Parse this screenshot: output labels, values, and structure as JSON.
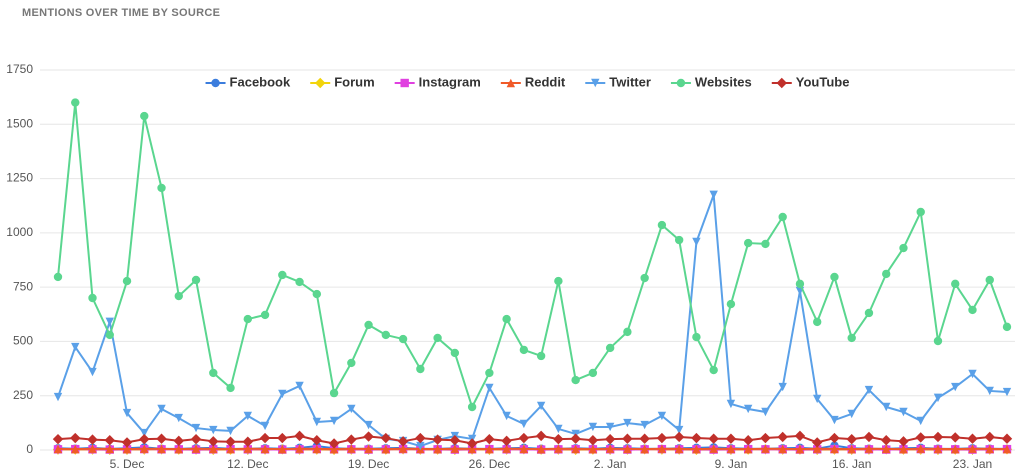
{
  "chart_data": {
    "type": "line",
    "title": "MENTIONS OVER TIME BY SOURCE",
    "categories": [
      null,
      null,
      null,
      null,
      "5. Dec",
      null,
      null,
      null,
      null,
      null,
      null,
      "12. Dec",
      null,
      null,
      null,
      null,
      null,
      null,
      "19. Dec",
      null,
      null,
      null,
      null,
      null,
      null,
      "26. Dec",
      null,
      null,
      null,
      null,
      null,
      null,
      "2. Jan",
      null,
      null,
      null,
      null,
      null,
      null,
      "9. Jan",
      null,
      null,
      null,
      null,
      null,
      null,
      "16. Jan",
      null,
      null,
      null,
      null,
      null,
      null,
      "23. Jan",
      null,
      null
    ],
    "ylim": [
      0,
      1750
    ],
    "yticks": [
      0,
      250,
      500,
      750,
      1000,
      1250,
      1500,
      1750
    ],
    "grid": true,
    "series": [
      {
        "name": "Facebook",
        "color": "#3b7ddd",
        "marker": "circle",
        "values": [
          8,
          6,
          10,
          5,
          8,
          12,
          6,
          5,
          8,
          10,
          6,
          5,
          8,
          6,
          10,
          18,
          8,
          5,
          6,
          8,
          10,
          6,
          5,
          8,
          6,
          5,
          8,
          10,
          6,
          5,
          8,
          6,
          10,
          8,
          6,
          5,
          8,
          10,
          12,
          8,
          6,
          5,
          8,
          10,
          6,
          20,
          8,
          6,
          5,
          8,
          10,
          6,
          5,
          8,
          6,
          5
        ]
      },
      {
        "name": "Forum",
        "color": "#f2d40c",
        "marker": "diamond",
        "values": [
          2,
          2,
          2,
          1,
          2,
          2,
          3,
          2,
          2,
          1,
          2,
          2,
          2,
          3,
          2,
          2,
          1,
          2,
          2,
          2,
          3,
          2,
          2,
          1,
          2,
          2,
          2,
          3,
          2,
          2,
          1,
          2,
          2,
          2,
          3,
          2,
          2,
          1,
          2,
          2,
          2,
          3,
          2,
          2,
          1,
          2,
          2,
          2,
          3,
          2,
          2,
          1,
          2,
          2,
          2,
          3
        ]
      },
      {
        "name": "Instagram",
        "color": "#e040e0",
        "marker": "square",
        "values": [
          3,
          4,
          3,
          2,
          3,
          4,
          3,
          3,
          2,
          3,
          4,
          3,
          3,
          2,
          3,
          4,
          3,
          3,
          2,
          3,
          4,
          3,
          3,
          2,
          3,
          4,
          3,
          3,
          2,
          3,
          4,
          3,
          3,
          2,
          3,
          4,
          3,
          3,
          2,
          3,
          4,
          3,
          3,
          2,
          3,
          4,
          3,
          3,
          2,
          3,
          4,
          3,
          3,
          2,
          3,
          4
        ]
      },
      {
        "name": "Reddit",
        "color": "#f05a28",
        "marker": "triangle",
        "values": [
          5,
          4,
          6,
          5,
          4,
          6,
          5,
          4,
          6,
          5,
          4,
          6,
          5,
          4,
          6,
          5,
          4,
          6,
          5,
          4,
          6,
          5,
          4,
          6,
          5,
          4,
          6,
          5,
          4,
          6,
          5,
          4,
          6,
          5,
          4,
          6,
          5,
          4,
          6,
          5,
          4,
          6,
          5,
          4,
          6,
          5,
          4,
          6,
          5,
          4,
          6,
          5,
          4,
          6,
          5,
          4
        ]
      },
      {
        "name": "Twitter",
        "color": "#5aa0e8",
        "marker": "triangle-down",
        "values": [
          244,
          474,
          359,
          590,
          170,
          78,
          189,
          147,
          101,
          92,
          88,
          157,
          111,
          258,
          295,
          129,
          134,
          189,
          115,
          51,
          41,
          18,
          46,
          64,
          51,
          286,
          157,
          120,
          203,
          97,
          74,
          106,
          106,
          124,
          115,
          157,
          92,
          958,
          1175,
          212,
          189,
          175,
          290,
          732,
          235,
          138,
          166,
          276,
          198,
          175,
          134,
          240,
          290,
          350,
          272,
          267
        ]
      },
      {
        "name": "Websites",
        "color": "#5ad68f",
        "marker": "circle",
        "values": [
          797,
          1600,
          700,
          530,
          778,
          1538,
          1207,
          709,
          783,
          355,
          286,
          603,
          622,
          806,
          774,
          718,
          262,
          401,
          576,
          530,
          511,
          373,
          516,
          447,
          198,
          355,
          603,
          461,
          433,
          778,
          322,
          355,
          470,
          544,
          792,
          1036,
          967,
          520,
          368,
          672,
          953,
          949,
          1073,
          765,
          590,
          797,
          516,
          631,
          811,
          930,
          1096,
          502,
          765,
          645,
          783,
          567
        ]
      },
      {
        "name": "YouTube",
        "color": "#c0302b",
        "marker": "diamond",
        "values": [
          50,
          55,
          48,
          45,
          35,
          50,
          52,
          42,
          50,
          40,
          38,
          38,
          55,
          55,
          65,
          45,
          30,
          48,
          62,
          55,
          40,
          55,
          48,
          45,
          30,
          50,
          42,
          55,
          65,
          50,
          52,
          45,
          50,
          52,
          52,
          55,
          60,
          55,
          52,
          52,
          45,
          55,
          60,
          65,
          35,
          55,
          50,
          60,
          45,
          40,
          58,
          60,
          58,
          52,
          60,
          52
        ]
      }
    ]
  }
}
